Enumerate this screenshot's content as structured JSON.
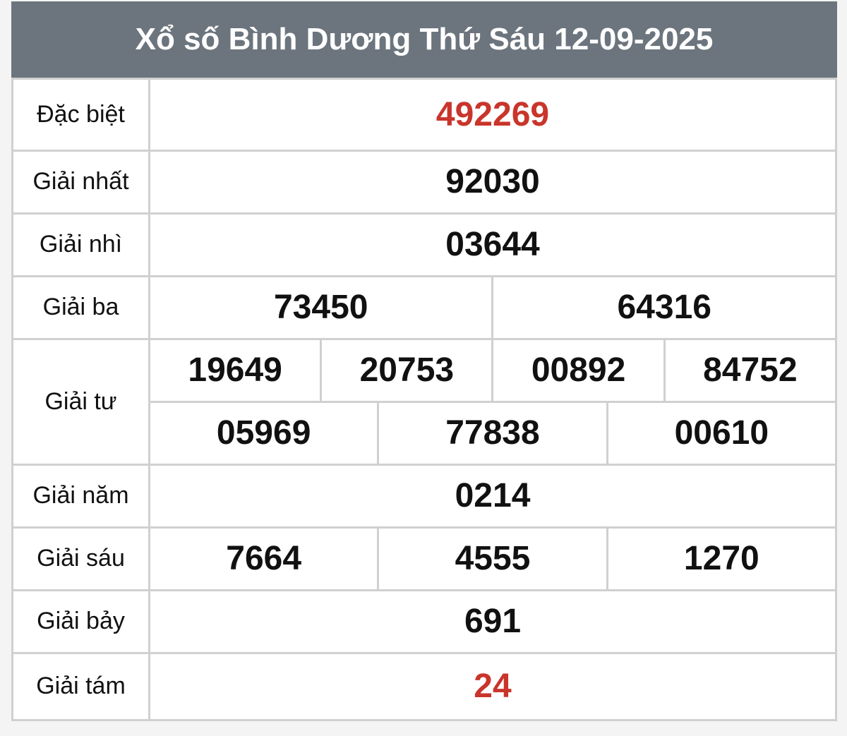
{
  "title": "Xổ số Bình Dương Thứ Sáu 12-09-2025",
  "accent_color": "#c9352b",
  "header_color": "#6c757d",
  "prizes": {
    "special": {
      "label": "Đặc biệt",
      "numbers": [
        "492269"
      ]
    },
    "first": {
      "label": "Giải nhất",
      "numbers": [
        "92030"
      ]
    },
    "second": {
      "label": "Giải nhì",
      "numbers": [
        "03644"
      ]
    },
    "third": {
      "label": "Giải ba",
      "numbers": [
        "73450",
        "64316"
      ]
    },
    "fourth": {
      "label": "Giải tư",
      "numbers": [
        "19649",
        "20753",
        "00892",
        "84752",
        "05969",
        "77838",
        "00610"
      ]
    },
    "fifth": {
      "label": "Giải năm",
      "numbers": [
        "0214"
      ]
    },
    "sixth": {
      "label": "Giải sáu",
      "numbers": [
        "7664",
        "4555",
        "1270"
      ]
    },
    "seventh": {
      "label": "Giải bảy",
      "numbers": [
        "691"
      ]
    },
    "eighth": {
      "label": "Giải tám",
      "numbers": [
        "24"
      ]
    }
  }
}
